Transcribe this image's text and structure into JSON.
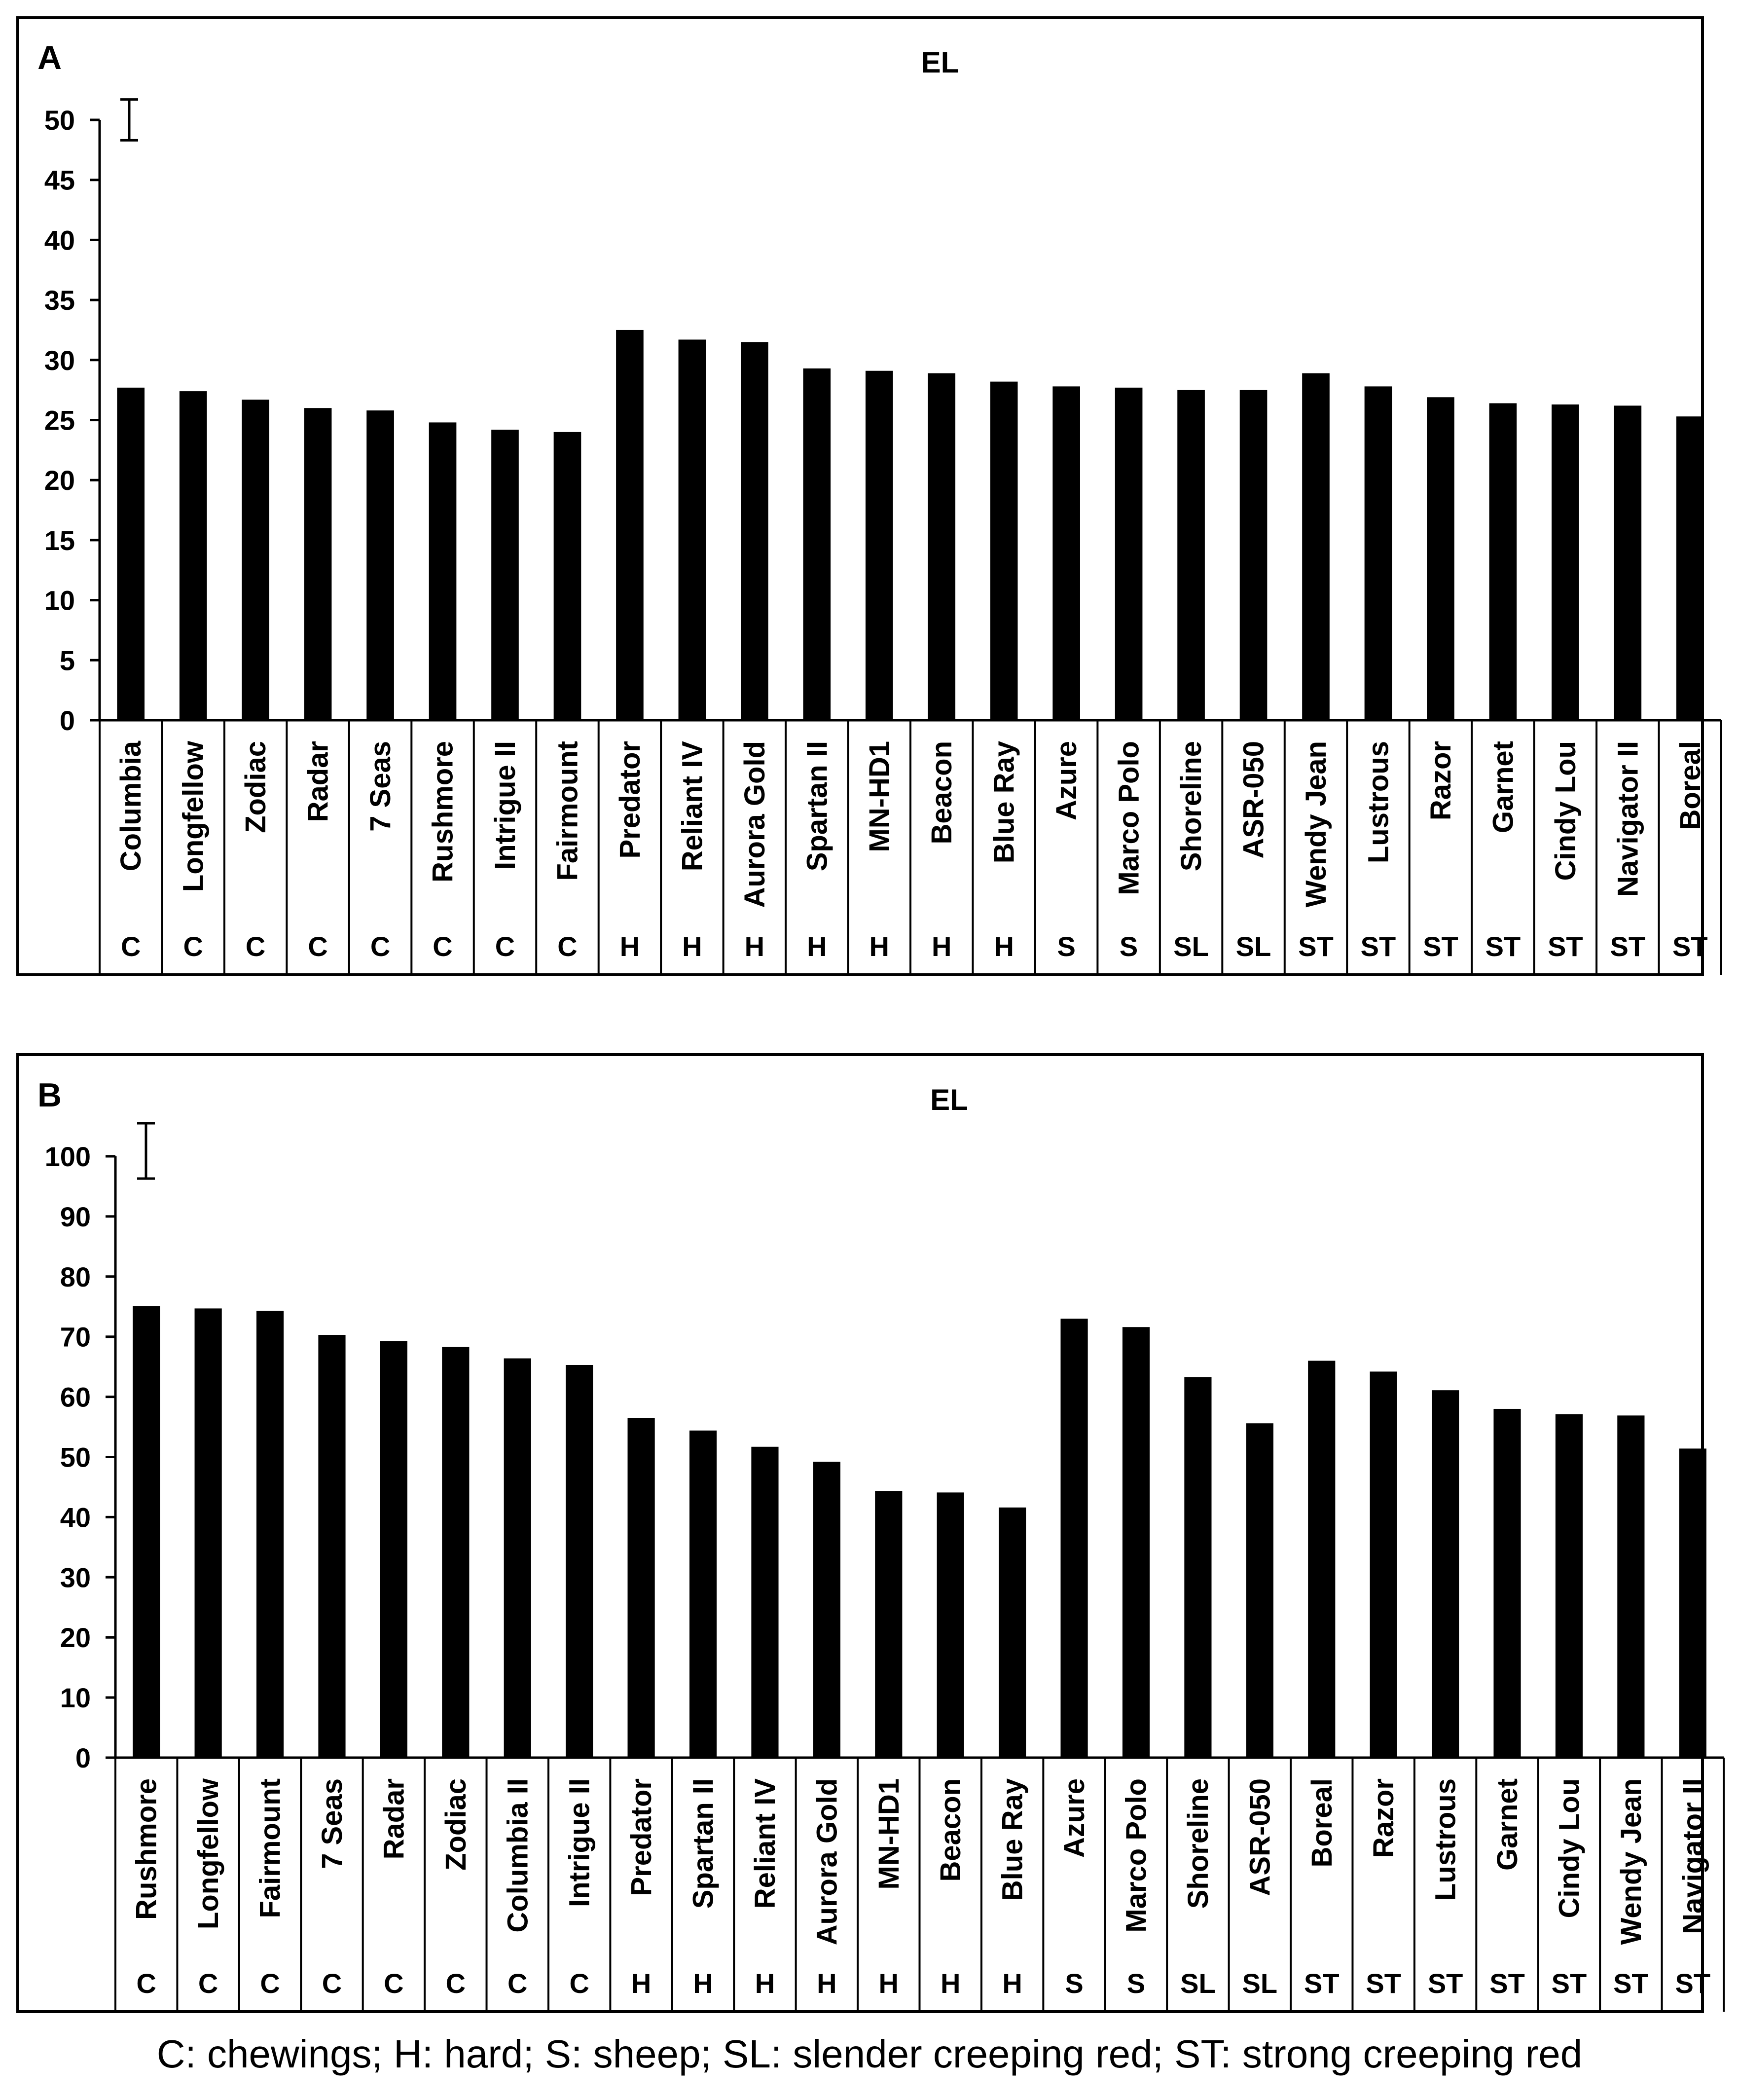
{
  "caption": "C: chewings; H: hard; S: sheep; SL: slender creeping red; ST: strong creeping red",
  "chart_data": [
    {
      "type": "bar",
      "panel": "A",
      "title": "EL",
      "ylim": [
        0,
        50
      ],
      "yticks": [
        0,
        5,
        10,
        15,
        20,
        25,
        30,
        35,
        40,
        45,
        50
      ],
      "error_bar": [
        48.3,
        51.7
      ],
      "categories": [
        "Columbia",
        "Longfellow",
        "Zodiac",
        "Radar",
        "7 Seas",
        "Rushmore",
        "Intrigue II",
        "Fairmount",
        "Predator",
        "Reliant IV",
        "Aurora Gold",
        "Spartan II",
        "MN-HD1",
        "Beacon",
        "Blue Ray",
        "Azure",
        "Marco Polo",
        "Shoreline",
        "ASR-050",
        "Wendy Jean",
        "Lustrous",
        "Razor",
        "Garnet",
        "Cindy Lou",
        "Navigator II",
        "Boreal"
      ],
      "groups": [
        "C",
        "C",
        "C",
        "C",
        "C",
        "C",
        "C",
        "C",
        "H",
        "H",
        "H",
        "H",
        "H",
        "H",
        "H",
        "S",
        "S",
        "SL",
        "SL",
        "ST",
        "ST",
        "ST",
        "ST",
        "ST",
        "ST",
        "ST"
      ],
      "values": [
        27.7,
        27.4,
        26.7,
        26.0,
        25.8,
        24.8,
        24.2,
        24.0,
        32.5,
        31.7,
        31.5,
        29.3,
        29.1,
        28.9,
        28.2,
        27.8,
        27.7,
        27.5,
        27.5,
        28.9,
        27.8,
        26.9,
        26.4,
        26.3,
        26.2,
        25.3
      ]
    },
    {
      "type": "bar",
      "panel": "B",
      "title": "EL",
      "ylim": [
        0,
        100
      ],
      "yticks": [
        0,
        10,
        20,
        30,
        40,
        50,
        60,
        70,
        80,
        90,
        100
      ],
      "error_bar": [
        96.3,
        105.5
      ],
      "categories": [
        "Rushmore",
        "Longfellow",
        "Fairmount",
        "7 Seas",
        "Radar",
        "Zodiac",
        "Columbia II",
        "Intrigue II",
        "Predator",
        "Spartan II",
        "Reliant IV",
        "Aurora Gold",
        "MN-HD1",
        "Beacon",
        "Blue Ray",
        "Azure",
        "Marco Polo",
        "Shoreline",
        "ASR-050",
        "Boreal",
        "Razor",
        "Lustrous",
        "Garnet",
        "Cindy Lou",
        "Wendy Jean",
        "Navigator II"
      ],
      "groups": [
        "C",
        "C",
        "C",
        "C",
        "C",
        "C",
        "C",
        "C",
        "H",
        "H",
        "H",
        "H",
        "H",
        "H",
        "H",
        "S",
        "S",
        "SL",
        "SL",
        "ST",
        "ST",
        "ST",
        "ST",
        "ST",
        "ST",
        "ST"
      ],
      "values": [
        75.1,
        74.7,
        74.3,
        70.3,
        69.3,
        68.3,
        66.4,
        65.3,
        56.5,
        54.4,
        51.7,
        49.2,
        44.3,
        44.1,
        41.6,
        73.0,
        71.6,
        63.3,
        55.6,
        66.0,
        64.2,
        61.1,
        58.0,
        57.1,
        56.9,
        51.4
      ]
    }
  ]
}
